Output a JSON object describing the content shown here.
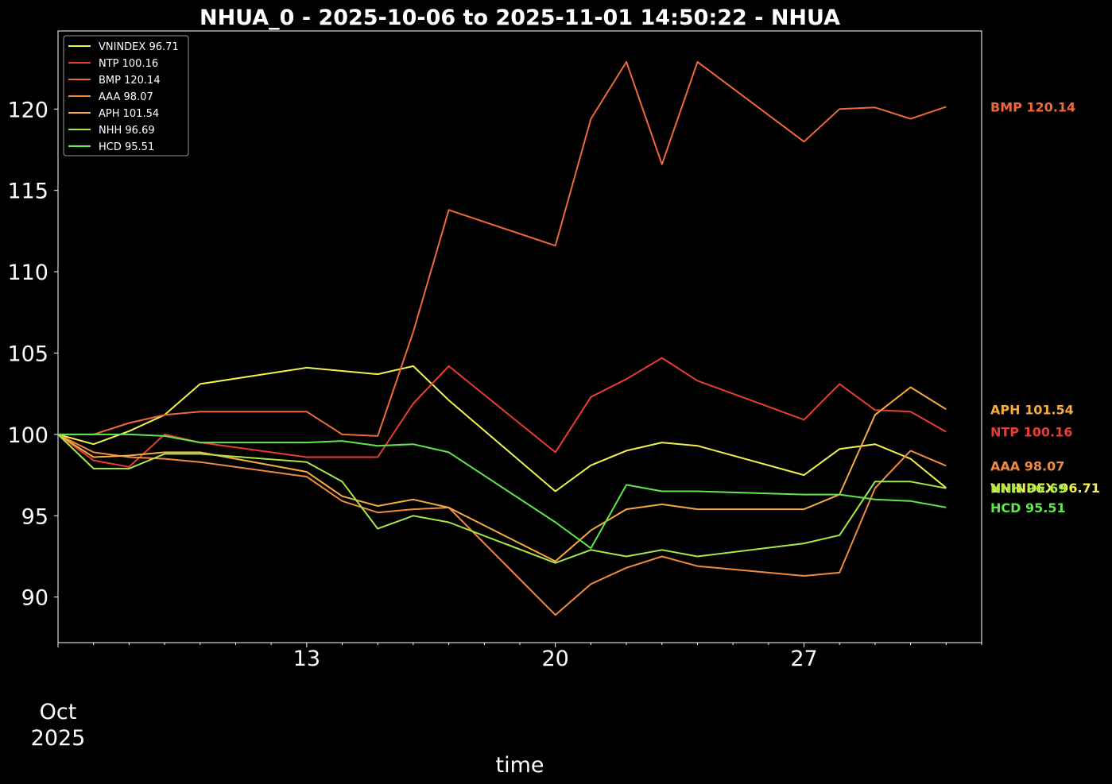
{
  "chart_data": {
    "type": "line",
    "title": "NHUA_0 - 2025-10-06 to 2025-11-01 14:50:22 - NHUA",
    "xlabel": "time",
    "ylabel": "",
    "x": [
      "2025-10-06",
      "2025-10-07",
      "2025-10-08",
      "2025-10-09",
      "2025-10-10",
      "2025-10-13",
      "2025-10-14",
      "2025-10-15",
      "2025-10-16",
      "2025-10-17",
      "2025-10-20",
      "2025-10-21",
      "2025-10-22",
      "2025-10-23",
      "2025-10-24",
      "2025-10-27",
      "2025-10-28",
      "2025-10-29",
      "2025-10-30",
      "2025-10-31"
    ],
    "xlim": [
      "2025-10-06",
      "2025-11-01"
    ],
    "x_ticks": [
      {
        "date": "2025-10-13",
        "label": "13"
      },
      {
        "date": "2025-10-20",
        "label": "20"
      },
      {
        "date": "2025-10-27",
        "label": "27"
      }
    ],
    "x_month_label": {
      "date": "2025-10-06",
      "line1": "Oct",
      "line2": "2025"
    },
    "ylim": [
      87.2,
      124.8
    ],
    "y_ticks": [
      90,
      95,
      100,
      105,
      110,
      115,
      120
    ],
    "y_tick_labels": [
      "90",
      "95",
      "100",
      "105",
      "110",
      "115",
      "120"
    ],
    "grid": false,
    "legend_position": "top-left",
    "series": [
      {
        "name": "VNINDEX 96.71",
        "end_label": "VNINDEX 96.71",
        "color": "#f2f24d",
        "values": [
          100,
          99.4,
          100.2,
          101.2,
          103.1,
          104.1,
          103.9,
          103.7,
          104.2,
          102.1,
          96.5,
          98.1,
          99.0,
          99.5,
          99.3,
          97.5,
          99.1,
          99.4,
          98.5,
          96.71
        ]
      },
      {
        "name": "NTP 100.16",
        "end_label": "NTP 100.16",
        "color": "#e83c35",
        "values": [
          100,
          98.4,
          98.0,
          100.0,
          99.5,
          98.6,
          98.6,
          98.6,
          101.9,
          104.2,
          98.9,
          102.3,
          103.4,
          104.7,
          103.3,
          100.9,
          103.1,
          101.5,
          101.4,
          100.16
        ]
      },
      {
        "name": "BMP 120.14",
        "end_label": "BMP 120.14",
        "color": "#ee6a3a",
        "values": [
          100,
          100.0,
          100.7,
          101.2,
          101.4,
          101.4,
          100.0,
          99.9,
          106.3,
          113.8,
          111.6,
          119.4,
          122.9,
          116.6,
          122.9,
          118.0,
          120.0,
          120.1,
          119.4,
          120.14
        ]
      },
      {
        "name": "AAA 98.07",
        "end_label": "AAA 98.07",
        "color": "#f08a40",
        "values": [
          100,
          98.9,
          98.6,
          98.5,
          98.3,
          97.4,
          95.9,
          95.2,
          95.4,
          95.5,
          88.9,
          90.8,
          91.8,
          92.5,
          91.9,
          91.3,
          91.5,
          96.7,
          99.0,
          98.07
        ]
      },
      {
        "name": "APH 101.54",
        "end_label": "APH 101.54",
        "color": "#f5ab42",
        "values": [
          100,
          98.6,
          98.7,
          98.9,
          98.9,
          97.7,
          96.2,
          95.6,
          96.0,
          95.5,
          92.2,
          94.1,
          95.4,
          95.7,
          95.4,
          95.4,
          96.3,
          101.2,
          102.9,
          101.54
        ]
      },
      {
        "name": "NHH 96.69",
        "end_label": "NHH 96.69",
        "color": "#a8e84a",
        "values": [
          100,
          97.9,
          97.9,
          98.8,
          98.8,
          98.3,
          97.1,
          94.2,
          95.0,
          94.6,
          92.1,
          92.9,
          92.5,
          92.9,
          92.5,
          93.3,
          93.8,
          97.1,
          97.1,
          96.69
        ]
      },
      {
        "name": "HCD 95.51",
        "end_label": "HCD 95.51",
        "color": "#5ee84a",
        "values": [
          100,
          100.0,
          100.0,
          99.9,
          99.5,
          99.5,
          99.6,
          99.3,
          99.4,
          98.9,
          94.6,
          93.0,
          96.9,
          96.5,
          96.5,
          96.3,
          96.3,
          96.0,
          95.9,
          95.51
        ]
      }
    ]
  }
}
